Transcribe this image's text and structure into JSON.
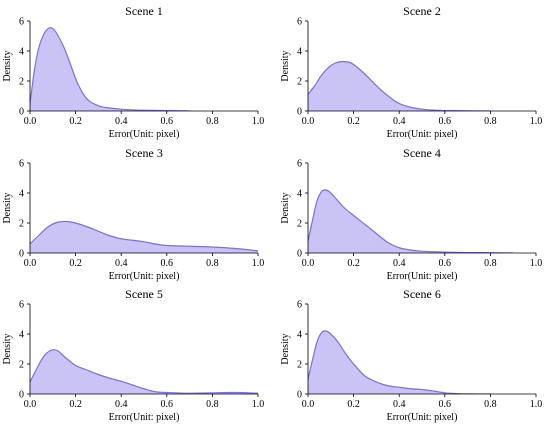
{
  "chart_data": [
    {
      "type": "area",
      "title": "Scene 1",
      "xlabel": "Error(Unit: pixel)",
      "ylabel": "Density",
      "xlim": [
        0.0,
        1.0
      ],
      "ylim": [
        0,
        6
      ],
      "xticks": [
        "0.0",
        "0.2",
        "0.4",
        "0.6",
        "0.8",
        "1.0"
      ],
      "yticks": [
        "0",
        "2",
        "4",
        "6"
      ],
      "x": [
        0.0,
        0.02,
        0.04,
        0.06,
        0.08,
        0.1,
        0.12,
        0.15,
        0.18,
        0.21,
        0.25,
        0.3,
        0.35,
        0.4,
        0.45,
        0.5,
        0.6,
        0.7
      ],
      "y": [
        0.5,
        2.8,
        4.3,
        5.1,
        5.5,
        5.5,
        5.1,
        4.2,
        3.0,
        1.8,
        0.8,
        0.35,
        0.2,
        0.12,
        0.08,
        0.05,
        0.03,
        0.0
      ]
    },
    {
      "type": "area",
      "title": "Scene 2",
      "xlabel": "Error(Unit: pixel)",
      "ylabel": "Density",
      "xlim": [
        0.0,
        1.0
      ],
      "ylim": [
        0,
        6
      ],
      "xticks": [
        "0.0",
        "0.2",
        "0.4",
        "0.6",
        "0.8",
        "1.0"
      ],
      "yticks": [
        "0",
        "2",
        "4",
        "6"
      ],
      "x": [
        0.0,
        0.03,
        0.06,
        0.09,
        0.12,
        0.15,
        0.18,
        0.2,
        0.24,
        0.28,
        0.32,
        0.36,
        0.4,
        0.45,
        0.5,
        0.55,
        0.6,
        0.7,
        0.8
      ],
      "y": [
        1.1,
        1.7,
        2.4,
        2.9,
        3.2,
        3.3,
        3.25,
        3.1,
        2.6,
        2.0,
        1.4,
        0.9,
        0.5,
        0.25,
        0.12,
        0.06,
        0.03,
        0.01,
        0.0
      ]
    },
    {
      "type": "area",
      "title": "Scene 3",
      "xlabel": "Error(Unit: pixel)",
      "ylabel": "Density",
      "xlim": [
        0.0,
        1.0
      ],
      "ylim": [
        0,
        6
      ],
      "xticks": [
        "0.0",
        "0.2",
        "0.4",
        "0.6",
        "0.8",
        "1.0"
      ],
      "yticks": [
        "0",
        "2",
        "4",
        "6"
      ],
      "x": [
        0.0,
        0.04,
        0.08,
        0.12,
        0.16,
        0.2,
        0.25,
        0.3,
        0.35,
        0.4,
        0.45,
        0.5,
        0.55,
        0.6,
        0.7,
        0.8,
        0.9,
        1.0
      ],
      "y": [
        0.6,
        1.2,
        1.75,
        2.05,
        2.1,
        2.0,
        1.75,
        1.45,
        1.15,
        0.95,
        0.85,
        0.75,
        0.6,
        0.5,
        0.45,
        0.4,
        0.3,
        0.15
      ]
    },
    {
      "type": "area",
      "title": "Scene 4",
      "xlabel": "Error(Unit: pixel)",
      "ylabel": "Density",
      "xlim": [
        0.0,
        1.0
      ],
      "ylim": [
        0,
        6
      ],
      "xticks": [
        "0.0",
        "0.2",
        "0.4",
        "0.6",
        "0.8",
        "1.0"
      ],
      "yticks": [
        "0",
        "2",
        "4",
        "6"
      ],
      "x": [
        0.0,
        0.02,
        0.04,
        0.06,
        0.08,
        0.1,
        0.13,
        0.16,
        0.2,
        0.25,
        0.3,
        0.35,
        0.4,
        0.45,
        0.5,
        0.6,
        0.7,
        0.8,
        0.9
      ],
      "y": [
        0.8,
        2.2,
        3.5,
        4.1,
        4.2,
        4.0,
        3.5,
        3.0,
        2.5,
        1.9,
        1.3,
        0.7,
        0.35,
        0.2,
        0.12,
        0.06,
        0.03,
        0.02,
        0.0
      ]
    },
    {
      "type": "area",
      "title": "Scene 5",
      "xlabel": "Error(Unit: pixel)",
      "ylabel": "Density",
      "xlim": [
        0.0,
        1.0
      ],
      "ylim": [
        0,
        6
      ],
      "xticks": [
        "0.0",
        "0.2",
        "0.4",
        "0.6",
        "0.8",
        "1.0"
      ],
      "yticks": [
        "0",
        "2",
        "4",
        "6"
      ],
      "x": [
        0.0,
        0.03,
        0.06,
        0.09,
        0.12,
        0.15,
        0.2,
        0.25,
        0.3,
        0.35,
        0.4,
        0.45,
        0.5,
        0.55,
        0.6,
        0.7,
        0.8,
        0.9,
        1.0
      ],
      "y": [
        0.8,
        1.7,
        2.5,
        2.9,
        2.9,
        2.5,
        1.9,
        1.6,
        1.3,
        1.05,
        0.85,
        0.6,
        0.35,
        0.15,
        0.1,
        0.05,
        0.08,
        0.1,
        0.05
      ]
    },
    {
      "type": "area",
      "title": "Scene 6",
      "xlabel": "Error(Unit: pixel)",
      "ylabel": "Density",
      "xlim": [
        0.0,
        1.0
      ],
      "ylim": [
        0,
        6
      ],
      "xticks": [
        "0.0",
        "0.2",
        "0.4",
        "0.6",
        "0.8",
        "1.0"
      ],
      "yticks": [
        "0",
        "2",
        "4",
        "6"
      ],
      "x": [
        0.0,
        0.02,
        0.04,
        0.06,
        0.08,
        0.1,
        0.13,
        0.16,
        0.2,
        0.25,
        0.3,
        0.35,
        0.4,
        0.45,
        0.5,
        0.55,
        0.6,
        0.65,
        0.7,
        0.8
      ],
      "y": [
        1.0,
        2.3,
        3.5,
        4.1,
        4.2,
        4.0,
        3.5,
        2.8,
        2.0,
        1.2,
        0.8,
        0.55,
        0.45,
        0.35,
        0.3,
        0.2,
        0.08,
        0.03,
        0.01,
        0.0
      ]
    }
  ],
  "colors": {
    "fill": "#c9c4f5",
    "line": "#7b6fe0"
  }
}
